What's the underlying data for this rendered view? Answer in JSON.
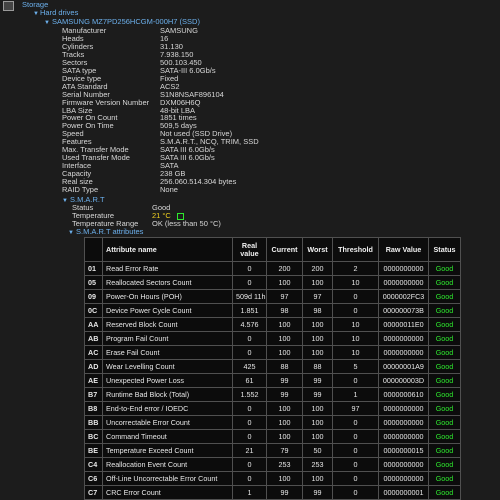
{
  "header": {
    "title": "Storage"
  },
  "tree": {
    "hard_drives": "Hard drives",
    "drive": "SAMSUNG MZ7PD256HCGM-000H7 (SSD)"
  },
  "properties": [
    [
      "Manufacturer",
      "SAMSUNG"
    ],
    [
      "Heads",
      "16"
    ],
    [
      "Cylinders",
      "31.130"
    ],
    [
      "Tracks",
      "7.938.150"
    ],
    [
      "Sectors",
      "500.103.450"
    ],
    [
      "SATA type",
      "SATA-III 6.0Gb/s"
    ],
    [
      "Device type",
      "Fixed"
    ],
    [
      "ATA Standard",
      "ACS2"
    ],
    [
      "Serial Number",
      "S1N8NSAF896104"
    ],
    [
      "Firmware Version Number",
      "DXM06H6Q"
    ],
    [
      "LBA Size",
      "48-bit LBA"
    ],
    [
      "Power On Count",
      "1851 times"
    ],
    [
      "Power On Time",
      "509,5 days"
    ],
    [
      "Speed",
      "Not used (SSD Drive)"
    ],
    [
      "Features",
      "S.M.A.R.T., NCQ, TRIM, SSD"
    ],
    [
      "Max. Transfer Mode",
      "SATA III 6.0Gb/s"
    ],
    [
      "Used Transfer Mode",
      "SATA III 6.0Gb/s"
    ],
    [
      "Interface",
      "SATA"
    ],
    [
      "Capacity",
      "238 GB"
    ],
    [
      "Real size",
      "256.060.514.304 bytes"
    ],
    [
      "RAID Type",
      "None"
    ]
  ],
  "smart": {
    "title": "S.M.A.R.T",
    "properties": [
      [
        "Status",
        "Good"
      ],
      [
        "Temperature",
        "21 °C"
      ],
      [
        "Temperature Range",
        "OK (less than 50 °C)"
      ]
    ],
    "attributes_title": "S.M.A.R.T attributes"
  },
  "table": {
    "columns": [
      "Attribute name",
      "Real value",
      "Current",
      "Worst",
      "Threshold",
      "Raw Value",
      "Status"
    ],
    "rows": [
      [
        "01",
        "Read Error Rate",
        "0",
        "200",
        "200",
        "2",
        "0000000000",
        "Good"
      ],
      [
        "05",
        "Reallocated Sectors Count",
        "0",
        "100",
        "100",
        "10",
        "0000000000",
        "Good"
      ],
      [
        "09",
        "Power-On Hours (POH)",
        "509d 11h",
        "97",
        "97",
        "0",
        "0000002FC3",
        "Good"
      ],
      [
        "0C",
        "Device Power Cycle Count",
        "1.851",
        "98",
        "98",
        "0",
        "000000073B",
        "Good"
      ],
      [
        "AA",
        "Reserved Block Count",
        "4.576",
        "100",
        "100",
        "10",
        "00000011E0",
        "Good"
      ],
      [
        "AB",
        "Program Fail Count",
        "0",
        "100",
        "100",
        "10",
        "0000000000",
        "Good"
      ],
      [
        "AC",
        "Erase Fail Count",
        "0",
        "100",
        "100",
        "10",
        "0000000000",
        "Good"
      ],
      [
        "AD",
        "Wear Levelling Count",
        "425",
        "88",
        "88",
        "5",
        "00000001A9",
        "Good"
      ],
      [
        "AE",
        "Unexpected Power Loss",
        "61",
        "99",
        "99",
        "0",
        "000000003D",
        "Good"
      ],
      [
        "B7",
        "Runtime Bad Block (Total)",
        "1.552",
        "99",
        "99",
        "1",
        "0000000610",
        "Good"
      ],
      [
        "B8",
        "End-to-End error / IOEDC",
        "0",
        "100",
        "100",
        "97",
        "0000000000",
        "Good"
      ],
      [
        "BB",
        "Uncorrectable Error Count",
        "0",
        "100",
        "100",
        "0",
        "0000000000",
        "Good"
      ],
      [
        "BC",
        "Command Timeout",
        "0",
        "100",
        "100",
        "0",
        "0000000000",
        "Good"
      ],
      [
        "BE",
        "Temperature Exceed Count",
        "21",
        "79",
        "50",
        "0",
        "0000000015",
        "Good"
      ],
      [
        "C4",
        "Reallocation Event Count",
        "0",
        "253",
        "253",
        "0",
        "0000000000",
        "Good"
      ],
      [
        "C6",
        "Off-Line Uncorrectable Error Count",
        "0",
        "100",
        "100",
        "0",
        "0000000000",
        "Good"
      ],
      [
        "C7",
        "CRC Error Count",
        "1",
        "99",
        "99",
        "0",
        "0000000001",
        "Good"
      ]
    ]
  }
}
